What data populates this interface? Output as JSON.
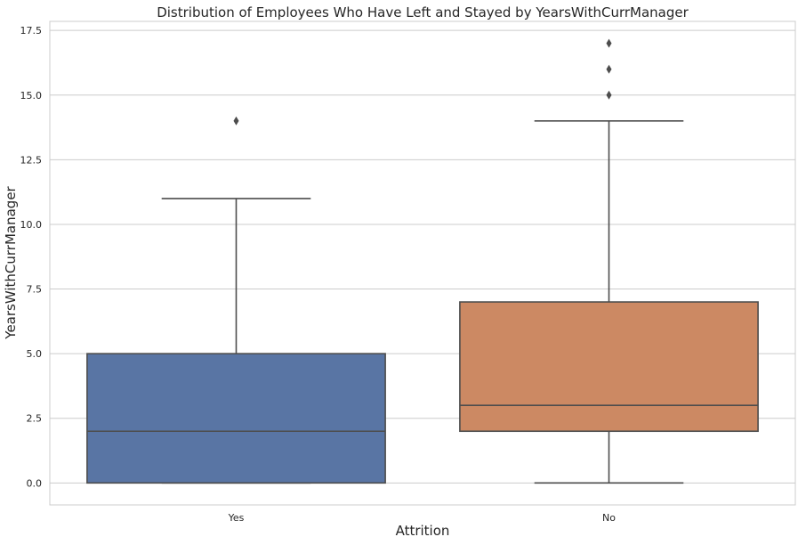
{
  "chart_data": {
    "type": "box",
    "title": "Distribution of Employees Who Have Left and Stayed by YearsWithCurrManager",
    "xlabel": "Attrition",
    "ylabel": "YearsWithCurrManager",
    "categories": [
      "Yes",
      "No"
    ],
    "ylim": [
      -0.85,
      17.85
    ],
    "yticks": [
      0.0,
      2.5,
      5.0,
      7.5,
      10.0,
      12.5,
      15.0,
      17.5
    ],
    "ytick_labels": [
      "0.0",
      "2.5",
      "5.0",
      "7.5",
      "10.0",
      "12.5",
      "15.0",
      "17.5"
    ],
    "grid": "horizontal",
    "boxes": [
      {
        "category": "Yes",
        "color": "#5975a4",
        "whisker_low": 0,
        "q1": 0,
        "median": 2,
        "q3": 5,
        "whisker_high": 11,
        "outliers": [
          14
        ]
      },
      {
        "category": "No",
        "color": "#cc8963",
        "whisker_low": 0,
        "q1": 2,
        "median": 3,
        "q3": 7,
        "whisker_high": 14,
        "outliers": [
          15,
          16,
          17
        ]
      }
    ]
  }
}
